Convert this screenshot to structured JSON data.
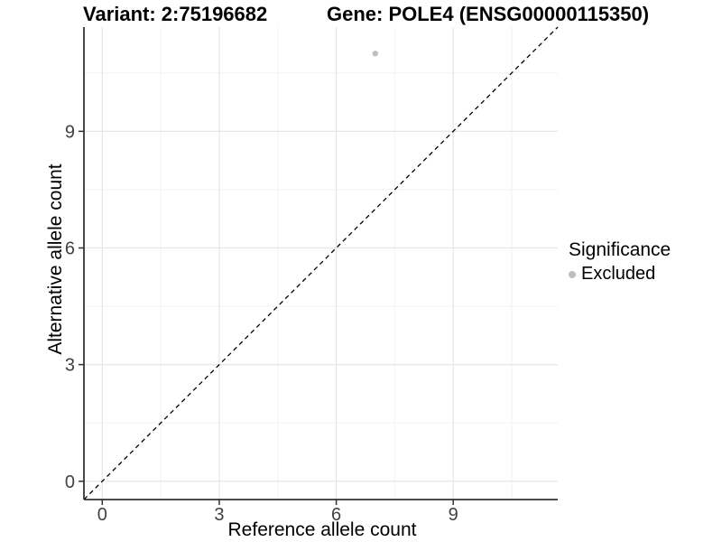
{
  "figure": {
    "title_variant": "Variant: 2:75196682",
    "title_gene": "Gene: POLE4 (ENSG00000115350)"
  },
  "chart_data": {
    "type": "scatter",
    "title": "Variant: 2:75196682 — Gene: POLE4 (ENSG00000115350)",
    "xlabel": "Reference allele count",
    "ylabel": "Alternative allele count",
    "xlim": [
      -0.47,
      11.68
    ],
    "ylim": [
      -0.47,
      11.68
    ],
    "xticks": [
      0,
      3,
      6,
      9
    ],
    "yticks": [
      0,
      3,
      6,
      9
    ],
    "xminor": [
      1.5,
      4.5,
      7.5,
      10.5
    ],
    "yminor": [
      1.5,
      4.5,
      7.5,
      10.5
    ],
    "grid": "major+minor",
    "points": [
      {
        "x": 7,
        "y": 11,
        "series": "Excluded"
      }
    ],
    "series": [
      {
        "name": "Excluded",
        "color": "#bebebe"
      }
    ],
    "identity_line": {
      "style": "dashed",
      "slope": 1,
      "intercept": 0,
      "color": "#000000"
    },
    "legend": {
      "title": "Significance",
      "position": "right",
      "items": [
        {
          "label": "Excluded",
          "color": "#bebebe"
        }
      ]
    }
  },
  "colors": {
    "background": "#ffffff",
    "grid_major": "#e6e6e6",
    "grid_minor": "#f2f2f2",
    "axis_line": "#333333",
    "tick_mark": "#333333",
    "tick_label": "#404040",
    "point": "#bebebe"
  }
}
